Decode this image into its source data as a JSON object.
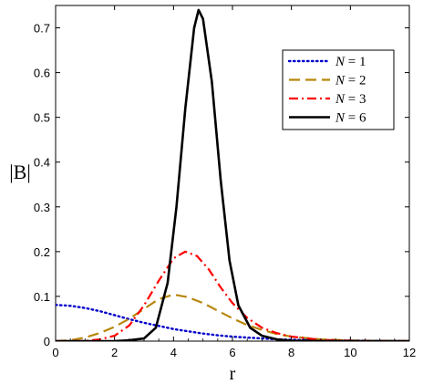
{
  "chart_data": {
    "type": "line",
    "xlabel": "r",
    "ylabel": "|B|",
    "xlim": [
      0,
      12
    ],
    "ylim": [
      0,
      0.75
    ],
    "xticks": [
      0,
      2,
      4,
      6,
      8,
      10,
      12
    ],
    "yticks": [
      0,
      0.1,
      0.2,
      0.3,
      0.4,
      0.5,
      0.6,
      0.7
    ],
    "grid": false,
    "legend": {
      "position": "top-right",
      "variable": "N",
      "operator": "="
    },
    "series": [
      {
        "name": "1",
        "color": "#0000cc",
        "style": "dotted",
        "points": [
          [
            0,
            0.081
          ],
          [
            0.5,
            0.079
          ],
          [
            1,
            0.074
          ],
          [
            1.5,
            0.067
          ],
          [
            2,
            0.058
          ],
          [
            2.5,
            0.049
          ],
          [
            3,
            0.041
          ],
          [
            3.5,
            0.034
          ],
          [
            4,
            0.027
          ],
          [
            4.5,
            0.022
          ],
          [
            5,
            0.017
          ],
          [
            5.5,
            0.013
          ],
          [
            6,
            0.01
          ],
          [
            6.5,
            0.008
          ],
          [
            7,
            0.006
          ],
          [
            7.5,
            0.004
          ],
          [
            8,
            0.003
          ],
          [
            9,
            0.002
          ],
          [
            10,
            0.001
          ],
          [
            11,
            0.0005
          ],
          [
            12,
            0.0002
          ]
        ]
      },
      {
        "name": "2",
        "color": "#b8860b",
        "style": "dashed",
        "points": [
          [
            0,
            0
          ],
          [
            0.5,
            0.002
          ],
          [
            1,
            0.008
          ],
          [
            1.5,
            0.018
          ],
          [
            2,
            0.032
          ],
          [
            2.5,
            0.05
          ],
          [
            3,
            0.072
          ],
          [
            3.5,
            0.094
          ],
          [
            4,
            0.104
          ],
          [
            4.5,
            0.098
          ],
          [
            5,
            0.085
          ],
          [
            5.5,
            0.068
          ],
          [
            6,
            0.051
          ],
          [
            6.5,
            0.036
          ],
          [
            7,
            0.025
          ],
          [
            7.5,
            0.016
          ],
          [
            8,
            0.01
          ],
          [
            9,
            0.004
          ],
          [
            10,
            0.0015
          ],
          [
            11,
            0.0005
          ],
          [
            12,
            0.0002
          ]
        ]
      },
      {
        "name": "3",
        "color": "#ff0000",
        "style": "dashdot",
        "points": [
          [
            0,
            0
          ],
          [
            1,
            0.0005
          ],
          [
            1.5,
            0.004
          ],
          [
            2,
            0.012
          ],
          [
            2.5,
            0.035
          ],
          [
            3,
            0.08
          ],
          [
            3.5,
            0.135
          ],
          [
            4,
            0.185
          ],
          [
            4.4,
            0.2
          ],
          [
            4.8,
            0.19
          ],
          [
            5.2,
            0.16
          ],
          [
            5.6,
            0.12
          ],
          [
            6,
            0.085
          ],
          [
            6.5,
            0.052
          ],
          [
            7,
            0.03
          ],
          [
            7.5,
            0.018
          ],
          [
            8,
            0.01
          ],
          [
            9,
            0.003
          ],
          [
            10,
            0.001
          ],
          [
            11,
            0.0003
          ],
          [
            12,
            0.0001
          ]
        ]
      },
      {
        "name": "6",
        "color": "#000000",
        "style": "solid",
        "points": [
          [
            0,
            0
          ],
          [
            2,
            0
          ],
          [
            2.5,
            0.002
          ],
          [
            3,
            0.006
          ],
          [
            3.4,
            0.03
          ],
          [
            3.8,
            0.13
          ],
          [
            4.1,
            0.3
          ],
          [
            4.4,
            0.52
          ],
          [
            4.7,
            0.7
          ],
          [
            4.85,
            0.74
          ],
          [
            5.0,
            0.72
          ],
          [
            5.3,
            0.58
          ],
          [
            5.6,
            0.36
          ],
          [
            5.9,
            0.18
          ],
          [
            6.2,
            0.08
          ],
          [
            6.6,
            0.03
          ],
          [
            7,
            0.012
          ],
          [
            7.5,
            0.004
          ],
          [
            8,
            0.001
          ],
          [
            9,
            0.0002
          ],
          [
            12,
            0
          ]
        ]
      }
    ]
  }
}
